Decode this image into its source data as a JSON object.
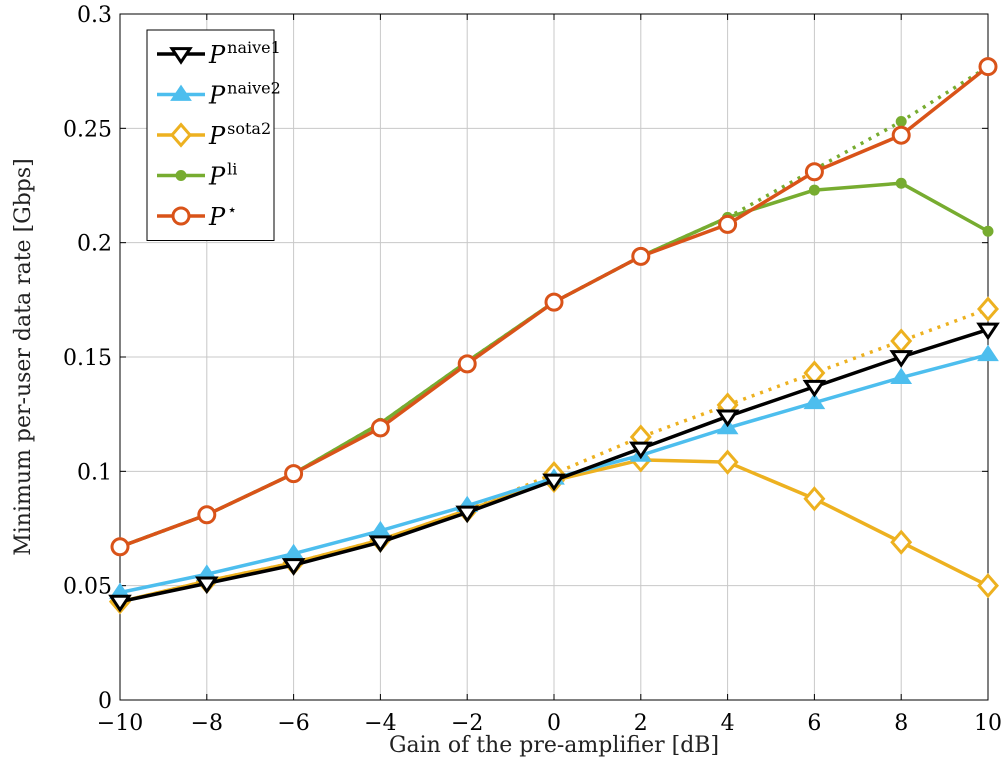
{
  "chart_data": {
    "type": "line",
    "xlabel": "Gain of the pre-amplifier [dB]",
    "ylabel": "Minimum per-user data rate [Gbps]",
    "xlim": [
      -10,
      10
    ],
    "ylim": [
      0,
      0.3
    ],
    "xticks": [
      -10,
      -8,
      -6,
      -4,
      -2,
      0,
      2,
      4,
      6,
      8,
      10
    ],
    "xtick_labels": [
      "−10",
      "−8",
      "−6",
      "−4",
      "−2",
      "0",
      "2",
      "4",
      "6",
      "8",
      "10"
    ],
    "yticks": [
      0,
      0.05,
      0.1,
      0.15,
      0.2,
      0.25,
      0.3
    ],
    "ytick_labels": [
      "0",
      "0.05",
      "0.1",
      "0.15",
      "0.2",
      "0.25",
      "0.3"
    ],
    "grid": true,
    "legend_position": "top-left",
    "x": [
      -10,
      -8,
      -6,
      -4,
      -2,
      0,
      2,
      4,
      6,
      8,
      10
    ],
    "series": [
      {
        "name_base": "P",
        "name_sup": "naive1",
        "color": "#000000",
        "marker": "triangle-down",
        "line": "solid",
        "values": [
          0.043,
          0.051,
          0.059,
          0.069,
          0.082,
          0.096,
          0.11,
          0.124,
          0.137,
          0.15,
          0.162
        ]
      },
      {
        "name_base": "P",
        "name_sup": "naive2",
        "color": "#4DBEEE",
        "marker": "triangle-up",
        "line": "solid",
        "values": [
          0.047,
          0.055,
          0.064,
          0.074,
          0.085,
          0.097,
          0.107,
          0.119,
          0.13,
          0.141,
          0.151
        ]
      },
      {
        "name_base": "P",
        "name_sup": "sota2",
        "color": "#EDB120",
        "marker": "diamond",
        "line": "solid",
        "values": [
          0.043,
          0.052,
          0.06,
          0.07,
          0.083,
          0.096,
          0.105,
          0.104,
          0.088,
          0.069,
          0.05
        ]
      },
      {
        "name_base": "P",
        "name_sup": "sota2",
        "color": "#EDB120",
        "marker": "diamond",
        "line": "dotted",
        "legend": false,
        "values": [
          0.043,
          0.052,
          0.06,
          0.07,
          0.083,
          0.099,
          0.115,
          0.129,
          0.143,
          0.157,
          0.171
        ]
      },
      {
        "name_base": "P",
        "name_sup": "li",
        "color": "#77AC30",
        "marker": "dot",
        "line": "solid",
        "values": [
          0.067,
          0.081,
          0.099,
          0.121,
          0.148,
          0.174,
          0.194,
          0.211,
          0.223,
          0.226,
          0.205
        ]
      },
      {
        "name_base": "P",
        "name_sup": "li",
        "color": "#77AC30",
        "marker": "dot",
        "line": "dotted",
        "legend": false,
        "values": [
          0.067,
          0.081,
          0.099,
          0.121,
          0.148,
          0.174,
          0.194,
          0.211,
          0.232,
          0.253,
          0.277
        ]
      },
      {
        "name_base": "P",
        "name_sup": "⋆",
        "color": "#D95319",
        "marker": "circle",
        "line": "solid",
        "values": [
          0.067,
          0.081,
          0.099,
          0.119,
          0.147,
          0.174,
          0.194,
          0.208,
          0.231,
          0.247,
          0.277
        ]
      }
    ]
  }
}
